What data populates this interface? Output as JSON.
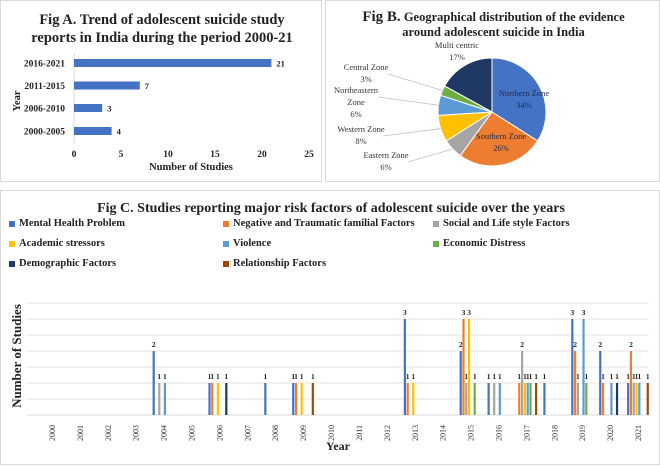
{
  "chart_data": [
    {
      "id": "figA",
      "type": "bar",
      "orientation": "horizontal",
      "title": "Fig A. Trend of adolescent suicide study reports in India during the period 2000-21",
      "title_lines": [
        "Fig A. Trend of adolescent suicide study",
        "reports in India during the period 2000-21"
      ],
      "categories": [
        "2016-2021",
        "2011-2015",
        "2006-2010",
        "2000-2005"
      ],
      "values": [
        21,
        7,
        3,
        4
      ],
      "data_labels": [
        "21",
        "7",
        "3",
        "4"
      ],
      "xlabel": "Number of Studies",
      "ylabel": "Year",
      "xlim": [
        0,
        25
      ],
      "xticks": [
        "0",
        "5",
        "10",
        "15",
        "20",
        "25"
      ],
      "color": "#4472c4"
    },
    {
      "id": "figB",
      "type": "pie",
      "title": "Fig B. Geographical distribution of the evidence around adolescent suicide in India",
      "title_prefix": "Fig B.",
      "title_line1": "Geographical distribution of the evidence",
      "title_line2": "around adolescent suicide in India",
      "slices": [
        {
          "label": "Northern Zone",
          "value": 34,
          "text": "34%",
          "color": "#4472c4"
        },
        {
          "label": "Southern Zone",
          "value": 26,
          "text": "26%",
          "color": "#ed7d31"
        },
        {
          "label": "Eastern Zone",
          "value": 6,
          "text": "6%",
          "color": "#a5a5a5"
        },
        {
          "label": "Western Zone",
          "value": 8,
          "text": "8%",
          "color": "#ffc000"
        },
        {
          "label": "Northeastern Zone",
          "value": 6,
          "text": "6%",
          "color": "#5b9bd5"
        },
        {
          "label": "Central Zone",
          "value": 3,
          "text": "3%",
          "color": "#70ad47"
        },
        {
          "label": "Multi centric",
          "value": 17,
          "text": "17%",
          "color": "#203864"
        }
      ]
    },
    {
      "id": "figC",
      "type": "bar",
      "title": "Fig C. Studies reporting major risk factors of adolescent suicide over the years",
      "xlabel": "Year",
      "ylabel": "Number of Studies",
      "ylim": [
        0,
        3.5
      ],
      "grid": true,
      "legend_position": "top",
      "categories": [
        "2000",
        "2001",
        "2002",
        "2003",
        "2004",
        "2005",
        "2006",
        "2007",
        "2008",
        "2009",
        "2010",
        "2011",
        "2012",
        "2013",
        "2014",
        "2015",
        "2016",
        "2017",
        "2018",
        "2019",
        "2020",
        "2021"
      ],
      "series": [
        {
          "name": "Mental Health Problem",
          "color": "#4472c4",
          "values": [
            0,
            0,
            0,
            0,
            2,
            0,
            1,
            0,
            1,
            1,
            0,
            0,
            0,
            3,
            0,
            2,
            1,
            0,
            1,
            3,
            2,
            1
          ]
        },
        {
          "name": "Negative and Traumatic familial Factors",
          "color": "#ed7d31",
          "values": [
            0,
            0,
            0,
            0,
            0,
            0,
            1,
            0,
            0,
            1,
            0,
            0,
            0,
            1,
            0,
            3,
            0,
            1,
            0,
            2,
            1,
            2
          ]
        },
        {
          "name": "Social and Life style Factors",
          "color": "#a5a5a5",
          "values": [
            0,
            0,
            0,
            0,
            1,
            0,
            0,
            0,
            0,
            0,
            0,
            0,
            0,
            0,
            0,
            1,
            1,
            2,
            0,
            1,
            0,
            1
          ]
        },
        {
          "name": "Academic stressors",
          "color": "#ffc000",
          "values": [
            0,
            0,
            0,
            0,
            0,
            0,
            1,
            0,
            0,
            1,
            0,
            0,
            0,
            1,
            0,
            3,
            0,
            1,
            0,
            0,
            0,
            1
          ]
        },
        {
          "name": "Violence",
          "color": "#5b9bd5",
          "values": [
            0,
            0,
            0,
            0,
            1,
            0,
            0,
            0,
            0,
            0,
            0,
            0,
            0,
            0,
            0,
            0,
            1,
            1,
            0,
            3,
            1,
            1
          ]
        },
        {
          "name": "Economic Distress",
          "color": "#70ad47",
          "values": [
            0,
            0,
            0,
            0,
            0,
            0,
            0,
            0,
            0,
            0,
            0,
            0,
            0,
            0,
            0,
            1,
            0,
            1,
            0,
            1,
            0,
            0
          ]
        },
        {
          "name": "Demographic Factors",
          "color": "#203864",
          "values": [
            0,
            0,
            0,
            0,
            0,
            0,
            1,
            0,
            0,
            0,
            0,
            0,
            0,
            0,
            0,
            0,
            0,
            0,
            0,
            0,
            1,
            0
          ]
        },
        {
          "name": "Relationship Factors",
          "color": "#9e480e",
          "values": [
            0,
            0,
            0,
            0,
            0,
            0,
            0,
            0,
            0,
            1,
            0,
            0,
            0,
            0,
            0,
            0,
            0,
            1,
            0,
            0,
            0,
            1
          ]
        }
      ]
    }
  ]
}
